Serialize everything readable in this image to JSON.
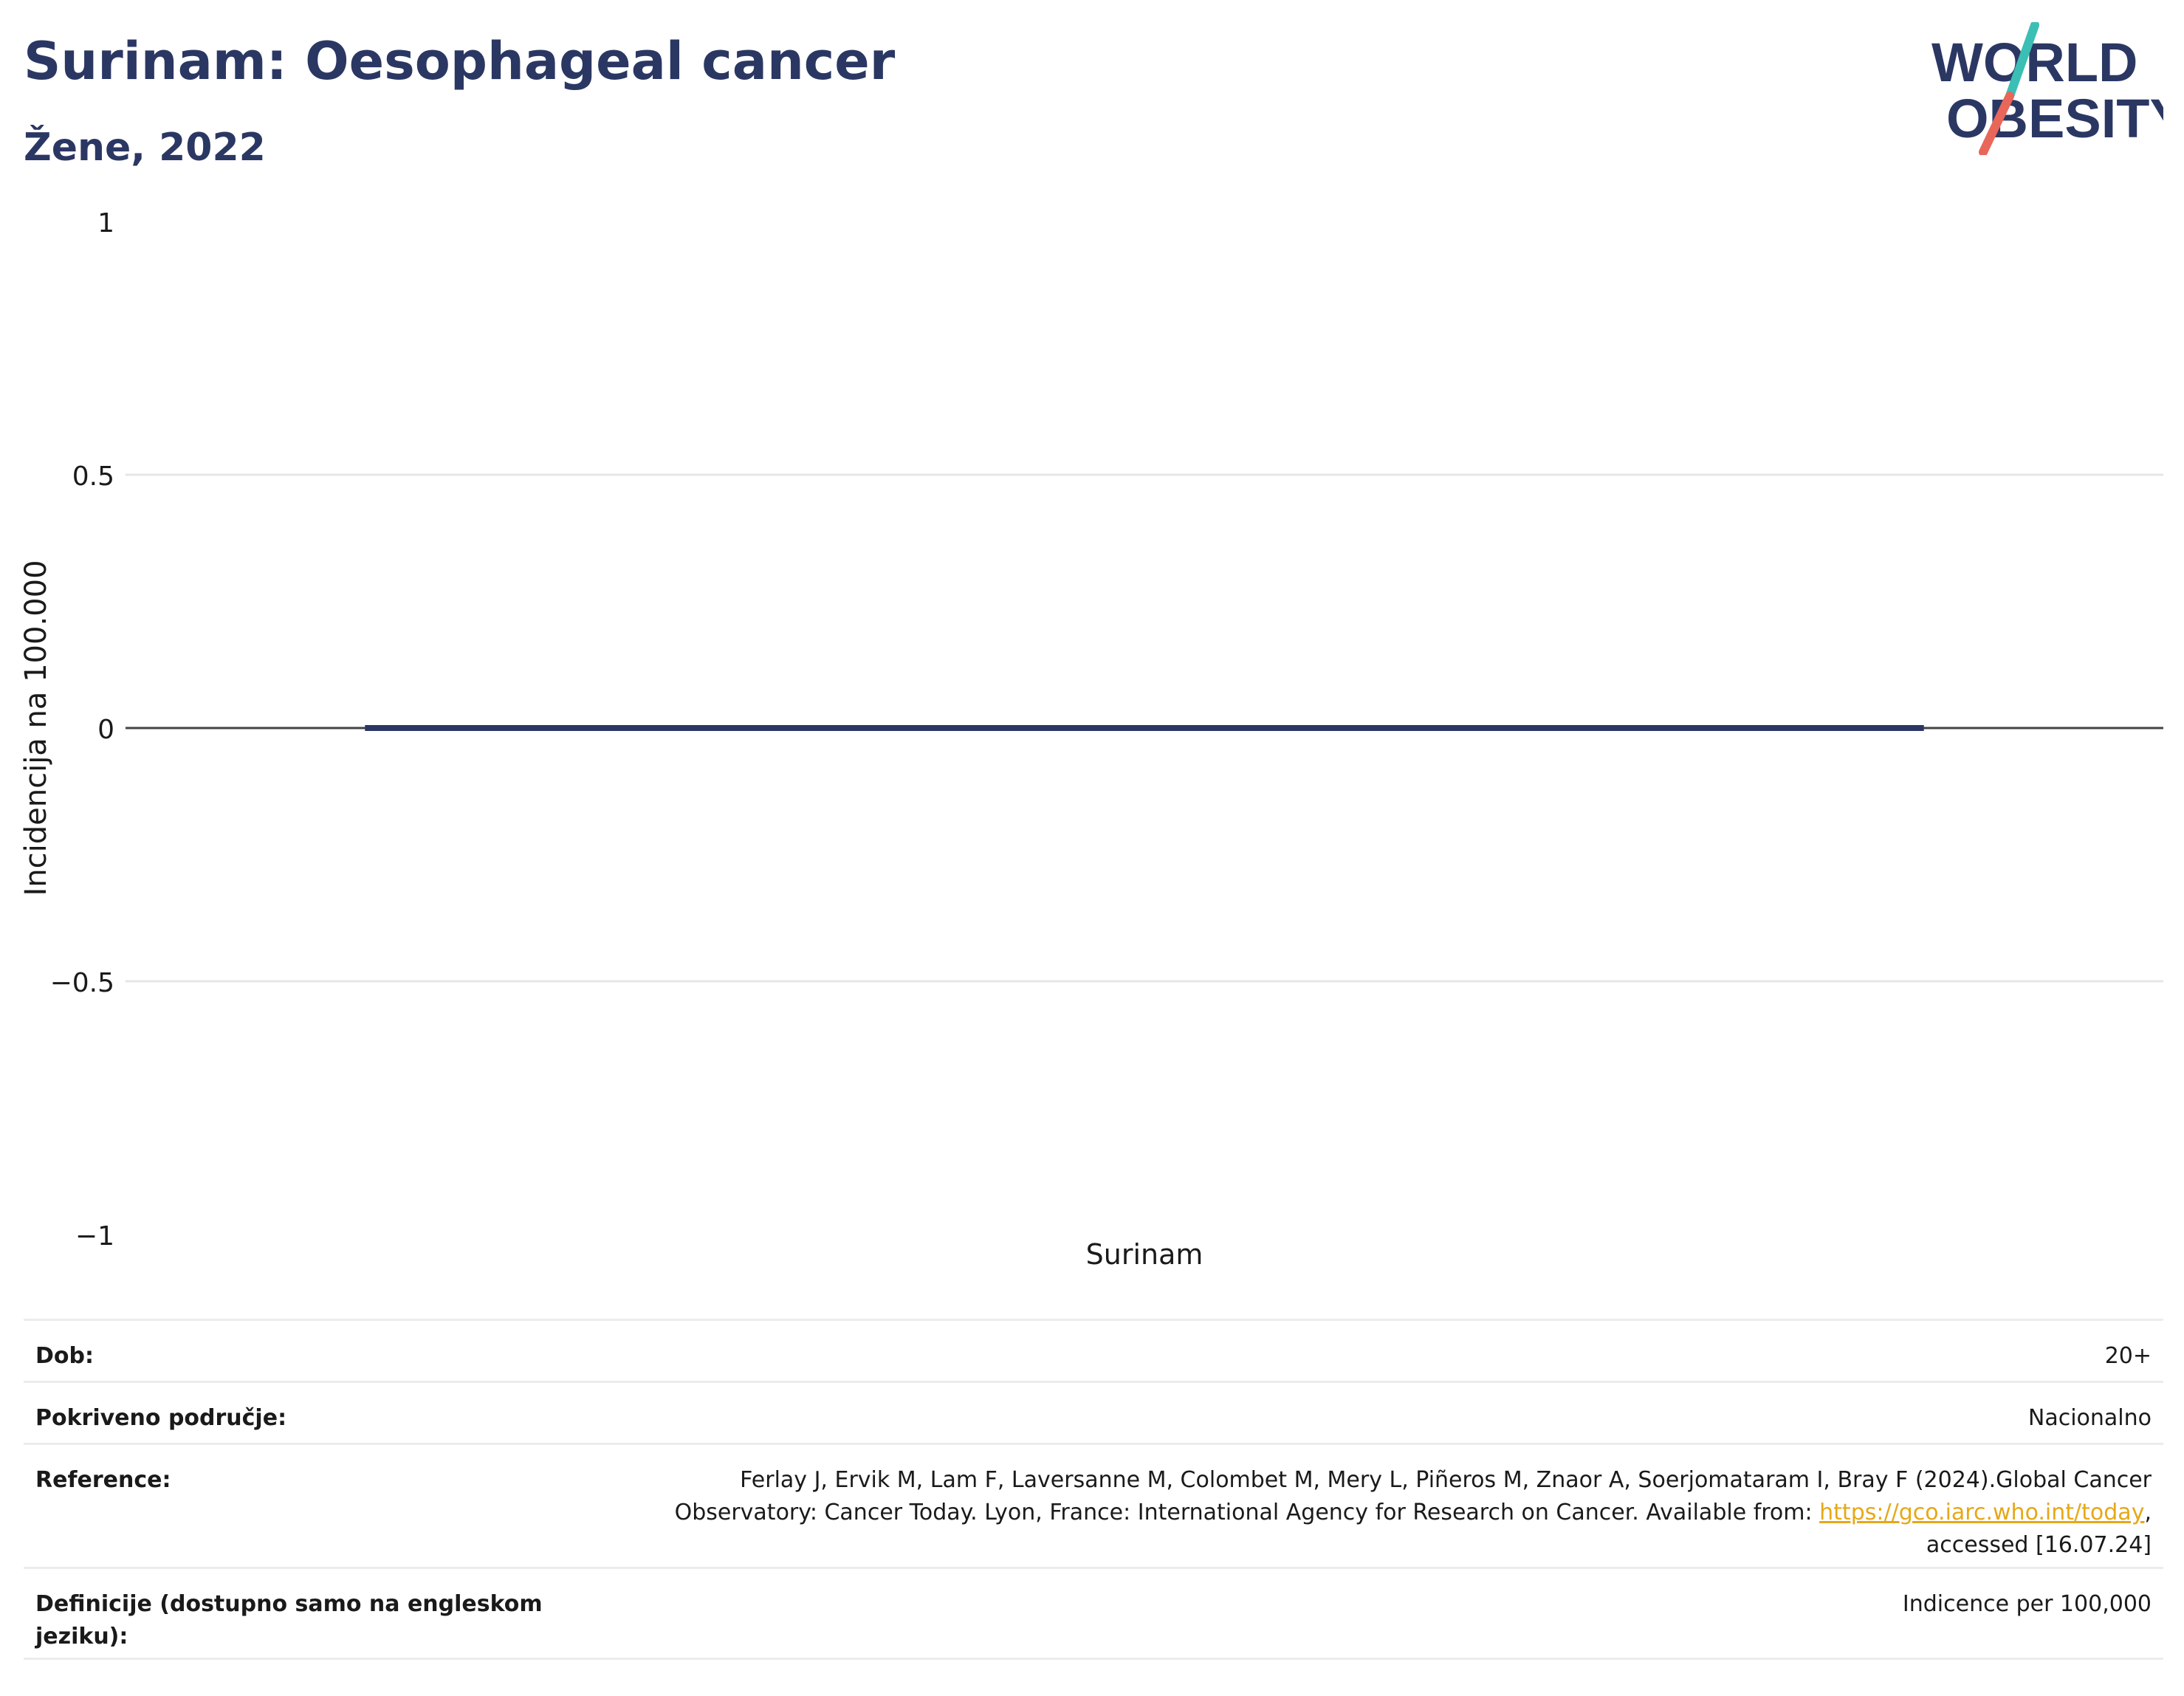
{
  "header": {
    "title": "Surinam: Oesophageal cancer",
    "subtitle": "Žene, 2022"
  },
  "logo": {
    "line1": "WORLD",
    "line2": "OBESITY",
    "colors": {
      "text": "#2b3763",
      "slash_top": "#3bbfb5",
      "slash_bottom": "#e8665a"
    }
  },
  "chart_data": {
    "type": "bar",
    "categories": [
      "Surinam"
    ],
    "values": [
      0
    ],
    "title": "",
    "xlabel": "",
    "ylabel": "Incidencija na 100.000",
    "ylim": [
      -1,
      1
    ],
    "yticks": [
      1,
      0.5,
      0,
      -0.5,
      -1
    ],
    "ytick_labels": [
      "1",
      "0.5",
      "0",
      "−0.5",
      "−1"
    ],
    "grid": true,
    "bar_color": "#2b3763"
  },
  "info": {
    "rows": [
      {
        "label": "Dob:",
        "value": "20+"
      },
      {
        "label": "Pokriveno područje:",
        "value": "Nacionalno"
      },
      {
        "label": "Reference:",
        "value_pre": "Ferlay J, Ervik M, Lam F, Laversanne M, Colombet M, Mery L, Piñeros M, Znaor A, Soerjomataram I, Bray F (2024).Global Cancer Observatory: Cancer Today. Lyon, France: International Agency for Research on Cancer. Available from: ",
        "link": "https://gco.iarc.who.int/today",
        "value_post": ", accessed [16.07.24]"
      },
      {
        "label": "Definicije (dostupno samo na engleskom jeziku):",
        "value": "Indicence per 100,000"
      }
    ]
  }
}
